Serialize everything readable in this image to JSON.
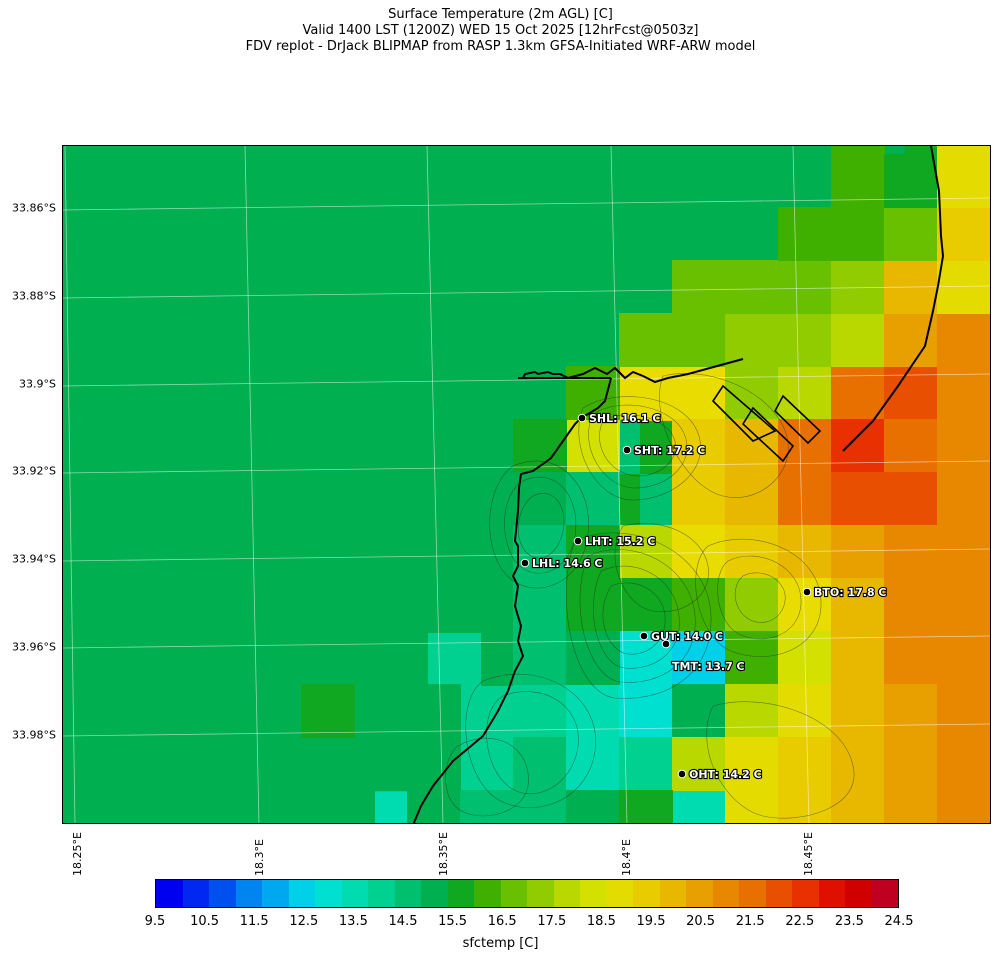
{
  "title": {
    "line1": "Surface Temperature (2m AGL) [C]",
    "line2": "Valid 1400 LST (1200Z) WED 15 Oct 2025 [12hrFcst@0503z]",
    "line3": "FDV replot - DrJack BLIPMAP from RASP 1.3km GFSA-Initiated WRF-ARW model"
  },
  "lat_labels": [
    "33.86°S",
    "33.88°S",
    "33.9°S",
    "33.92°S",
    "33.94°S",
    "33.96°S",
    "33.98°S"
  ],
  "lon_labels": [
    "18.25°E",
    "18.3°E",
    "18.35°E",
    "18.4°E",
    "18.45°E"
  ],
  "stations": [
    {
      "id": "SHL",
      "label": "SHL: 16.1 C",
      "value": 16.1
    },
    {
      "id": "SHT",
      "label": "SHT: 17.2 C",
      "value": 17.2
    },
    {
      "id": "LHT",
      "label": "LHT: 15.2 C",
      "value": 15.2
    },
    {
      "id": "LHL",
      "label": "LHL: 14.6 C",
      "value": 14.6
    },
    {
      "id": "BTO",
      "label": "BTO: 17.8 C",
      "value": 17.8
    },
    {
      "id": "GUT",
      "label": "GUT: 14.0 C",
      "value": 14.0
    },
    {
      "id": "TMT",
      "label": "TMT: 13.7 C",
      "value": 13.7
    },
    {
      "id": "OHT",
      "label": "OHT: 14.2 C",
      "value": 14.2
    }
  ],
  "colorbar": {
    "label": "sfctemp [C]",
    "ticks": [
      "9.5",
      "10.5",
      "11.5",
      "12.5",
      "13.5",
      "14.5",
      "15.5",
      "16.5",
      "17.5",
      "18.5",
      "19.5",
      "20.5",
      "21.5",
      "22.5",
      "23.5",
      "24.5"
    ],
    "colors": [
      "#0000f0",
      "#0028f0",
      "#0050f0",
      "#0084f0",
      "#00a8f0",
      "#00d0e8",
      "#00e0d0",
      "#00dcb0",
      "#00d090",
      "#00c070",
      "#00b050",
      "#10a820",
      "#40b000",
      "#68c000",
      "#90cc00",
      "#b8d800",
      "#d4e000",
      "#e4dc00",
      "#e8cc00",
      "#e8b800",
      "#e8a000",
      "#e88800",
      "#e87000",
      "#e85000",
      "#e83000",
      "#e01000",
      "#d00000",
      "#c00020"
    ]
  }
}
